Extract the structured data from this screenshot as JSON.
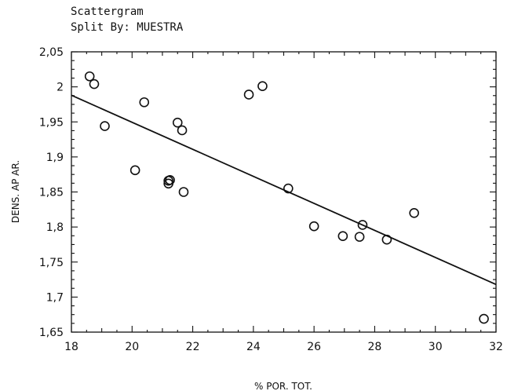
{
  "chart_data": {
    "type": "scatter",
    "title": "Scattergram",
    "subtitle": "Split By:  MUESTRA",
    "xlabel": "% POR. TOT.",
    "ylabel": "DENS. AP AR.",
    "xlim": [
      18,
      32
    ],
    "ylim": [
      1.65,
      2.05
    ],
    "x_ticks": [
      18,
      20,
      22,
      24,
      26,
      28,
      30,
      32
    ],
    "y_ticks": [
      1.65,
      1.7,
      1.75,
      1.8,
      1.85,
      1.9,
      1.95,
      2.0,
      2.05
    ],
    "y_tick_labels": [
      "1,65",
      "1,7",
      "1,75",
      "1,8",
      "1,85",
      "1,9",
      "1,95",
      "2",
      "2,05"
    ],
    "x_tick_labels": [
      "18",
      "20",
      "22",
      "24",
      "26",
      "28",
      "30",
      "32"
    ],
    "grid": false,
    "points": [
      {
        "x": 18.6,
        "y": 2.015
      },
      {
        "x": 18.75,
        "y": 2.004
      },
      {
        "x": 19.1,
        "y": 1.944
      },
      {
        "x": 20.1,
        "y": 1.881
      },
      {
        "x": 20.4,
        "y": 1.978
      },
      {
        "x": 21.2,
        "y": 1.866
      },
      {
        "x": 21.2,
        "y": 1.862
      },
      {
        "x": 21.25,
        "y": 1.867
      },
      {
        "x": 21.5,
        "y": 1.949
      },
      {
        "x": 21.65,
        "y": 1.938
      },
      {
        "x": 21.7,
        "y": 1.85
      },
      {
        "x": 23.85,
        "y": 1.989
      },
      {
        "x": 24.3,
        "y": 2.001
      },
      {
        "x": 25.15,
        "y": 1.855
      },
      {
        "x": 26.0,
        "y": 1.801
      },
      {
        "x": 26.95,
        "y": 1.787
      },
      {
        "x": 27.5,
        "y": 1.786
      },
      {
        "x": 27.6,
        "y": 1.803
      },
      {
        "x": 28.4,
        "y": 1.782
      },
      {
        "x": 29.3,
        "y": 1.82
      },
      {
        "x": 31.6,
        "y": 1.669
      }
    ],
    "trendline": {
      "x1": 18,
      "y1": 1.988,
      "x2": 32,
      "y2": 1.718
    }
  }
}
